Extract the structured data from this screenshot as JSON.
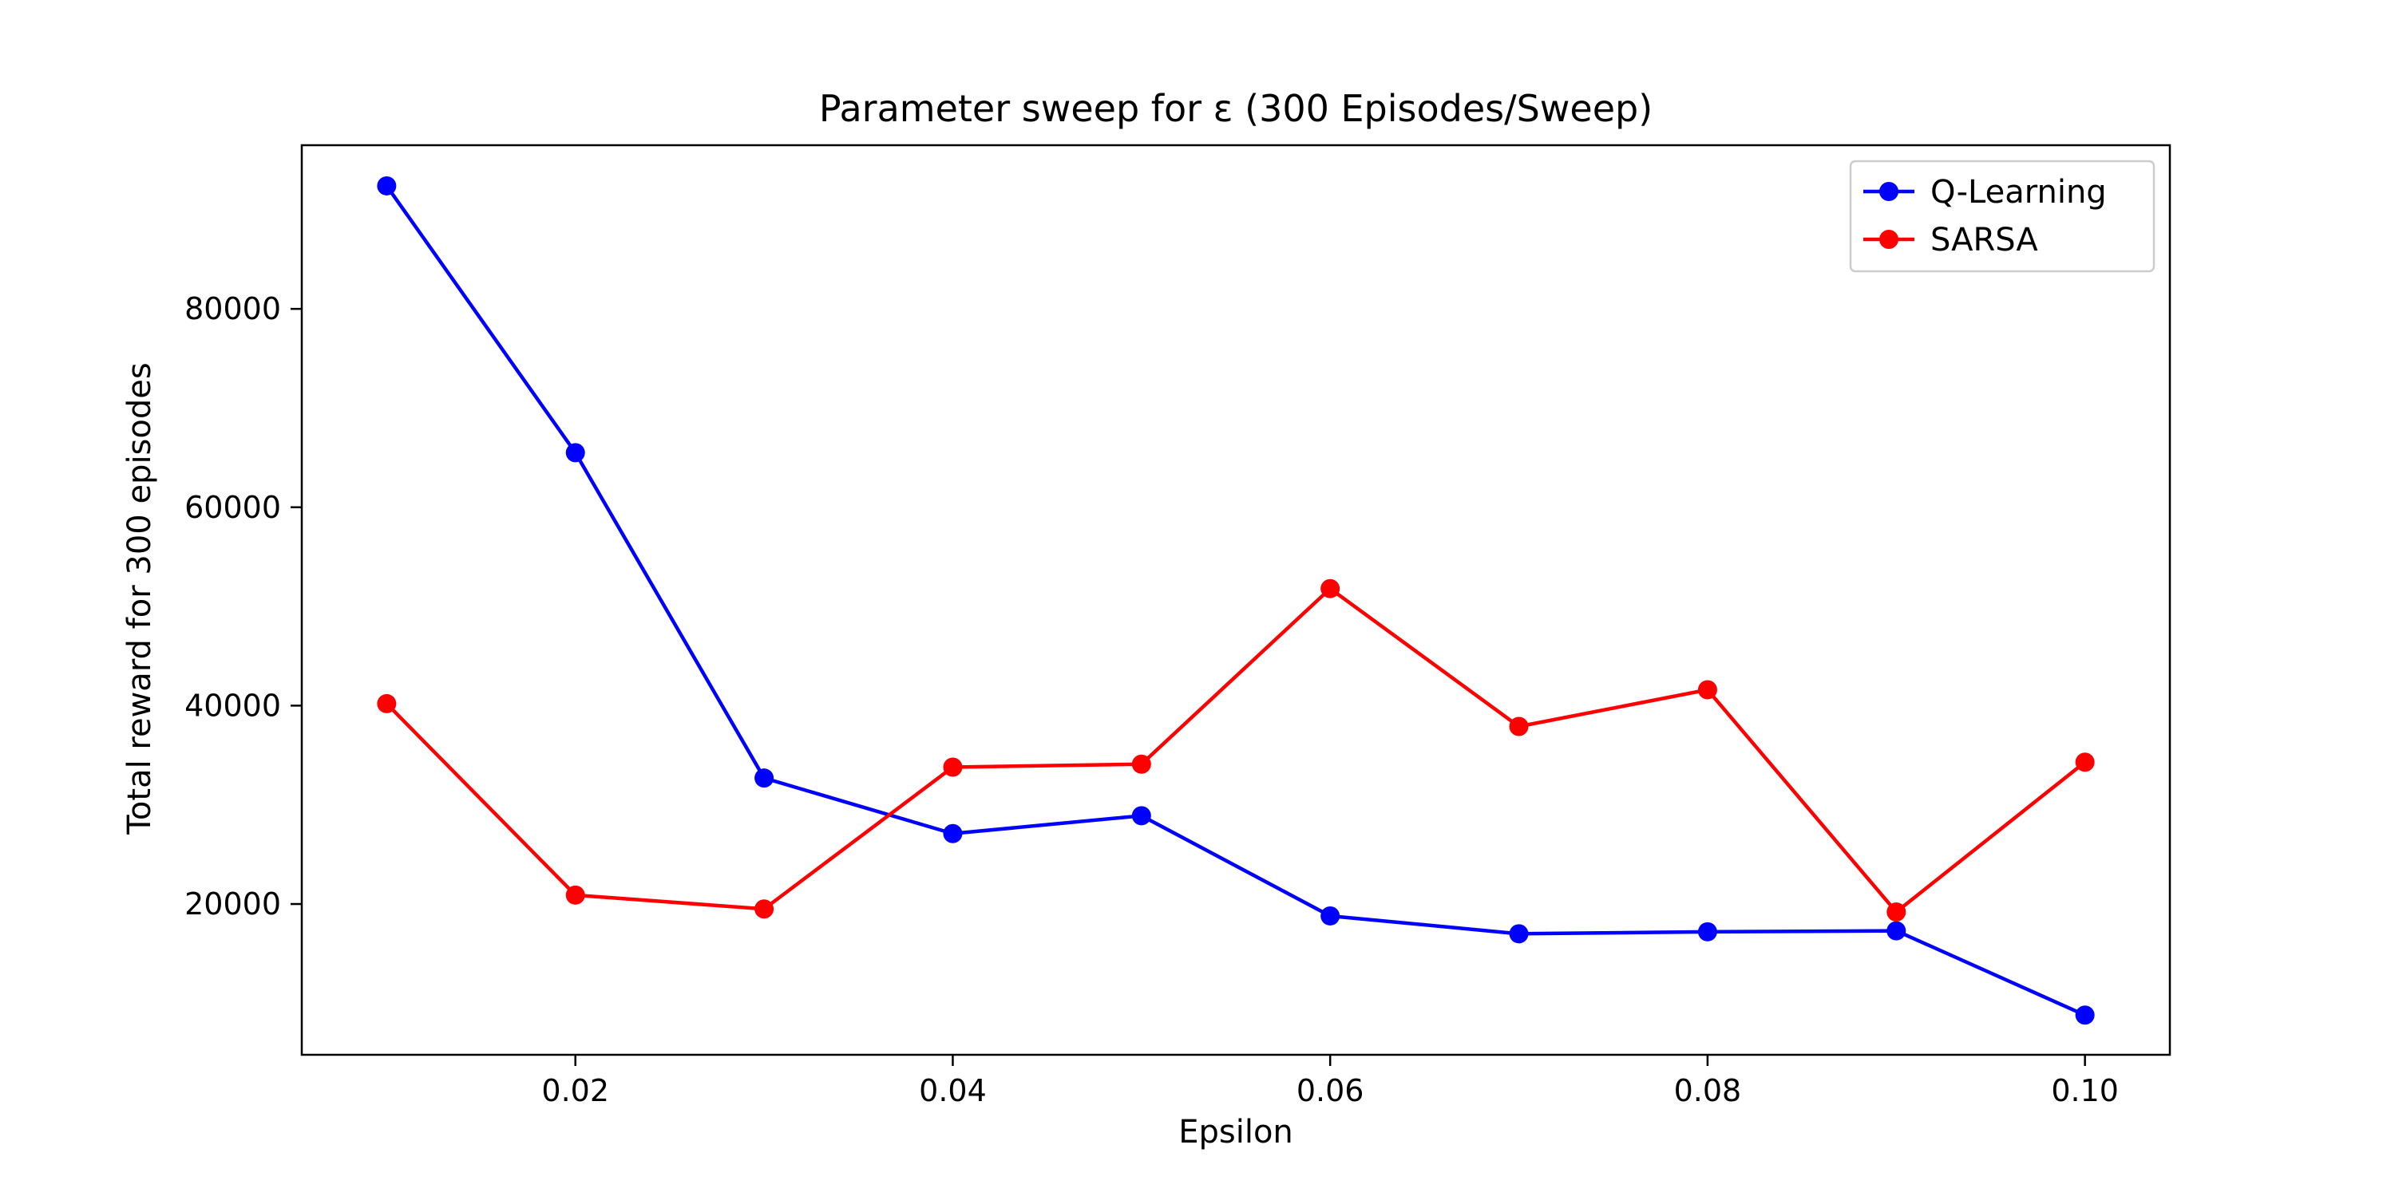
{
  "chart_data": {
    "type": "line",
    "title": "Parameter sweep for ε (300 Episodes/Sweep)",
    "xlabel": "Epsilon",
    "ylabel": "Total reward for 300 episodes",
    "x": [
      0.01,
      0.02,
      0.03,
      0.04,
      0.05,
      0.06,
      0.07,
      0.08,
      0.09,
      0.1
    ],
    "xlim": [
      0.0055,
      0.1045
    ],
    "ylim": [
      4800,
      96500
    ],
    "x_ticks": [
      0.02,
      0.04,
      0.06,
      0.08,
      0.1
    ],
    "x_tick_labels": [
      "0.02",
      "0.04",
      "0.06",
      "0.08",
      "0.10"
    ],
    "y_ticks": [
      20000,
      40000,
      60000,
      80000
    ],
    "y_tick_labels": [
      "20000",
      "40000",
      "60000",
      "80000"
    ],
    "grid": false,
    "legend": "top-right",
    "series": [
      {
        "name": "Q-Learning",
        "color": "#0000ff",
        "marker": "circle",
        "values": [
          92400,
          65500,
          32700,
          27100,
          28900,
          18800,
          17000,
          17200,
          17300,
          8800
        ]
      },
      {
        "name": "SARSA",
        "color": "#ff0000",
        "marker": "circle",
        "values": [
          40200,
          20900,
          19500,
          33800,
          34100,
          51800,
          37900,
          41600,
          19200,
          34300
        ]
      }
    ]
  }
}
